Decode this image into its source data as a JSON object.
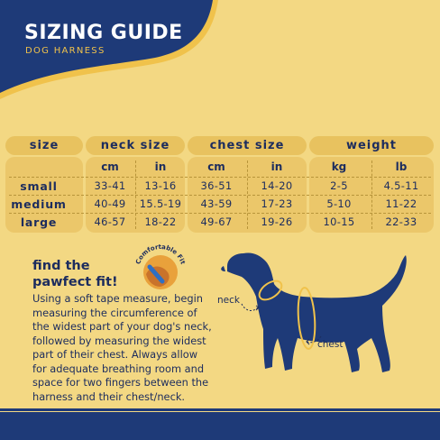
{
  "header": {
    "title": "SIZING GUIDE",
    "subtitle": "DOG HARNESS"
  },
  "colors": {
    "background": "#f3d883",
    "navy": "#1e3a78",
    "text": "#1c2c5e",
    "accent": "#f0c24b",
    "cell": "#ebc76a"
  },
  "table": {
    "group_headers": [
      "size",
      "neck size",
      "chest size",
      "weight"
    ],
    "units": [
      "cm",
      "in",
      "cm",
      "in",
      "kg",
      "lb"
    ],
    "rows": [
      {
        "label": "small",
        "values": [
          "33-41",
          "13-16",
          "36-51",
          "14-20",
          "2-5",
          "4.5-11"
        ]
      },
      {
        "label": "medium",
        "values": [
          "40-49",
          "15.5-19",
          "43-59",
          "17-23",
          "5-10",
          "11-22"
        ]
      },
      {
        "label": "large",
        "values": [
          "46-57",
          "18-22",
          "49-67",
          "19-26",
          "10-15",
          "22-33"
        ]
      }
    ]
  },
  "fit": {
    "title_line1": "find the",
    "title_line2": "pawfect fit!",
    "badge_text": "Comfortable Fit",
    "body_lines": [
      "Using a soft tape measure, begin",
      "measuring the circumference of",
      "the widest part of your dog's neck,",
      "followed by measuring the widest",
      "part of their chest. Always allow",
      "for adequate breathing room and",
      "space for two fingers between the",
      "harness and their chest/neck."
    ]
  },
  "diagram": {
    "neck_label": "neck",
    "chest_label": "chest"
  }
}
